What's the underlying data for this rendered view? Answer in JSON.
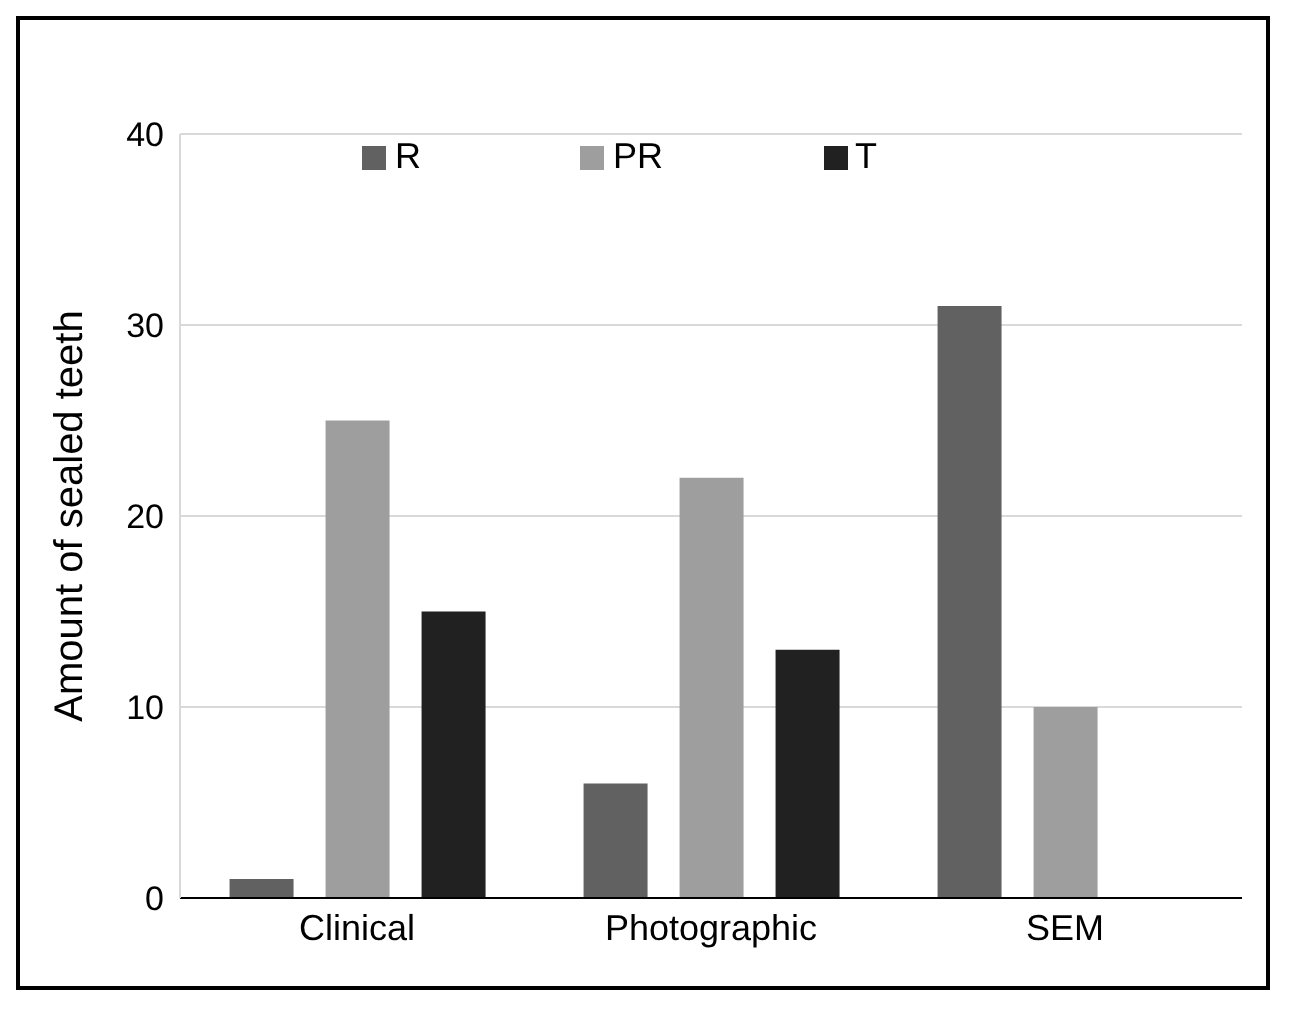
{
  "chart_data": {
    "type": "bar",
    "ylabel": "Amount of sealed teeth",
    "categories": [
      "Clinical",
      "Photographic",
      "SEM"
    ],
    "series": [
      {
        "name": "R",
        "color": "#616161",
        "values": [
          1,
          6,
          31
        ]
      },
      {
        "name": "PR",
        "color": "#9e9e9e",
        "values": [
          25,
          22,
          10
        ]
      },
      {
        "name": "T",
        "color": "#212121",
        "values": [
          15,
          13,
          0
        ]
      }
    ],
    "ylim": [
      0,
      40
    ],
    "yticks": [
      0,
      10,
      20,
      30,
      40
    ],
    "grid": "y",
    "legend": "top"
  }
}
